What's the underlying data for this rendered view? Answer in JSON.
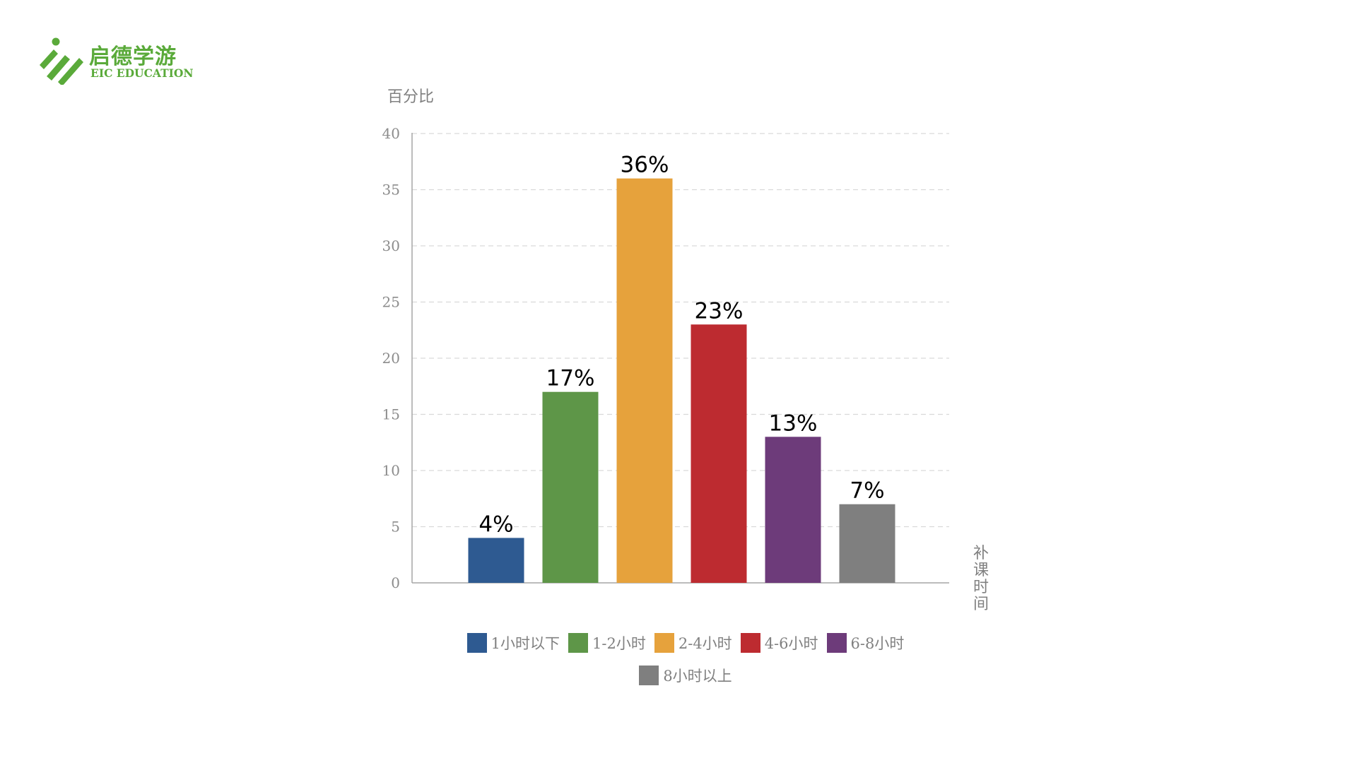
{
  "logo": {
    "name": "启德学游",
    "sub": "EIC EDUCATION",
    "color": "#5aaa3a"
  },
  "chart_data": {
    "type": "bar",
    "ylabel": "百分比",
    "xlabel": "补课时间",
    "ylim": [
      0,
      40
    ],
    "yticks": [
      0,
      5,
      10,
      15,
      20,
      25,
      30,
      35,
      40
    ],
    "grid": true,
    "legend_position": "bottom",
    "categories": [
      "1小时以下",
      "1-2小时",
      "2-4小时",
      "4-6小时",
      "6-8小时",
      "8小时以上"
    ],
    "values": [
      4,
      17,
      36,
      23,
      13,
      7
    ],
    "data_labels": [
      "4%",
      "17%",
      "36%",
      "23%",
      "13%",
      "7%"
    ],
    "colors": [
      "#2e5a91",
      "#5e9648",
      "#e6a23c",
      "#bd2b30",
      "#6d3b7a",
      "#7f7f7f"
    ]
  }
}
